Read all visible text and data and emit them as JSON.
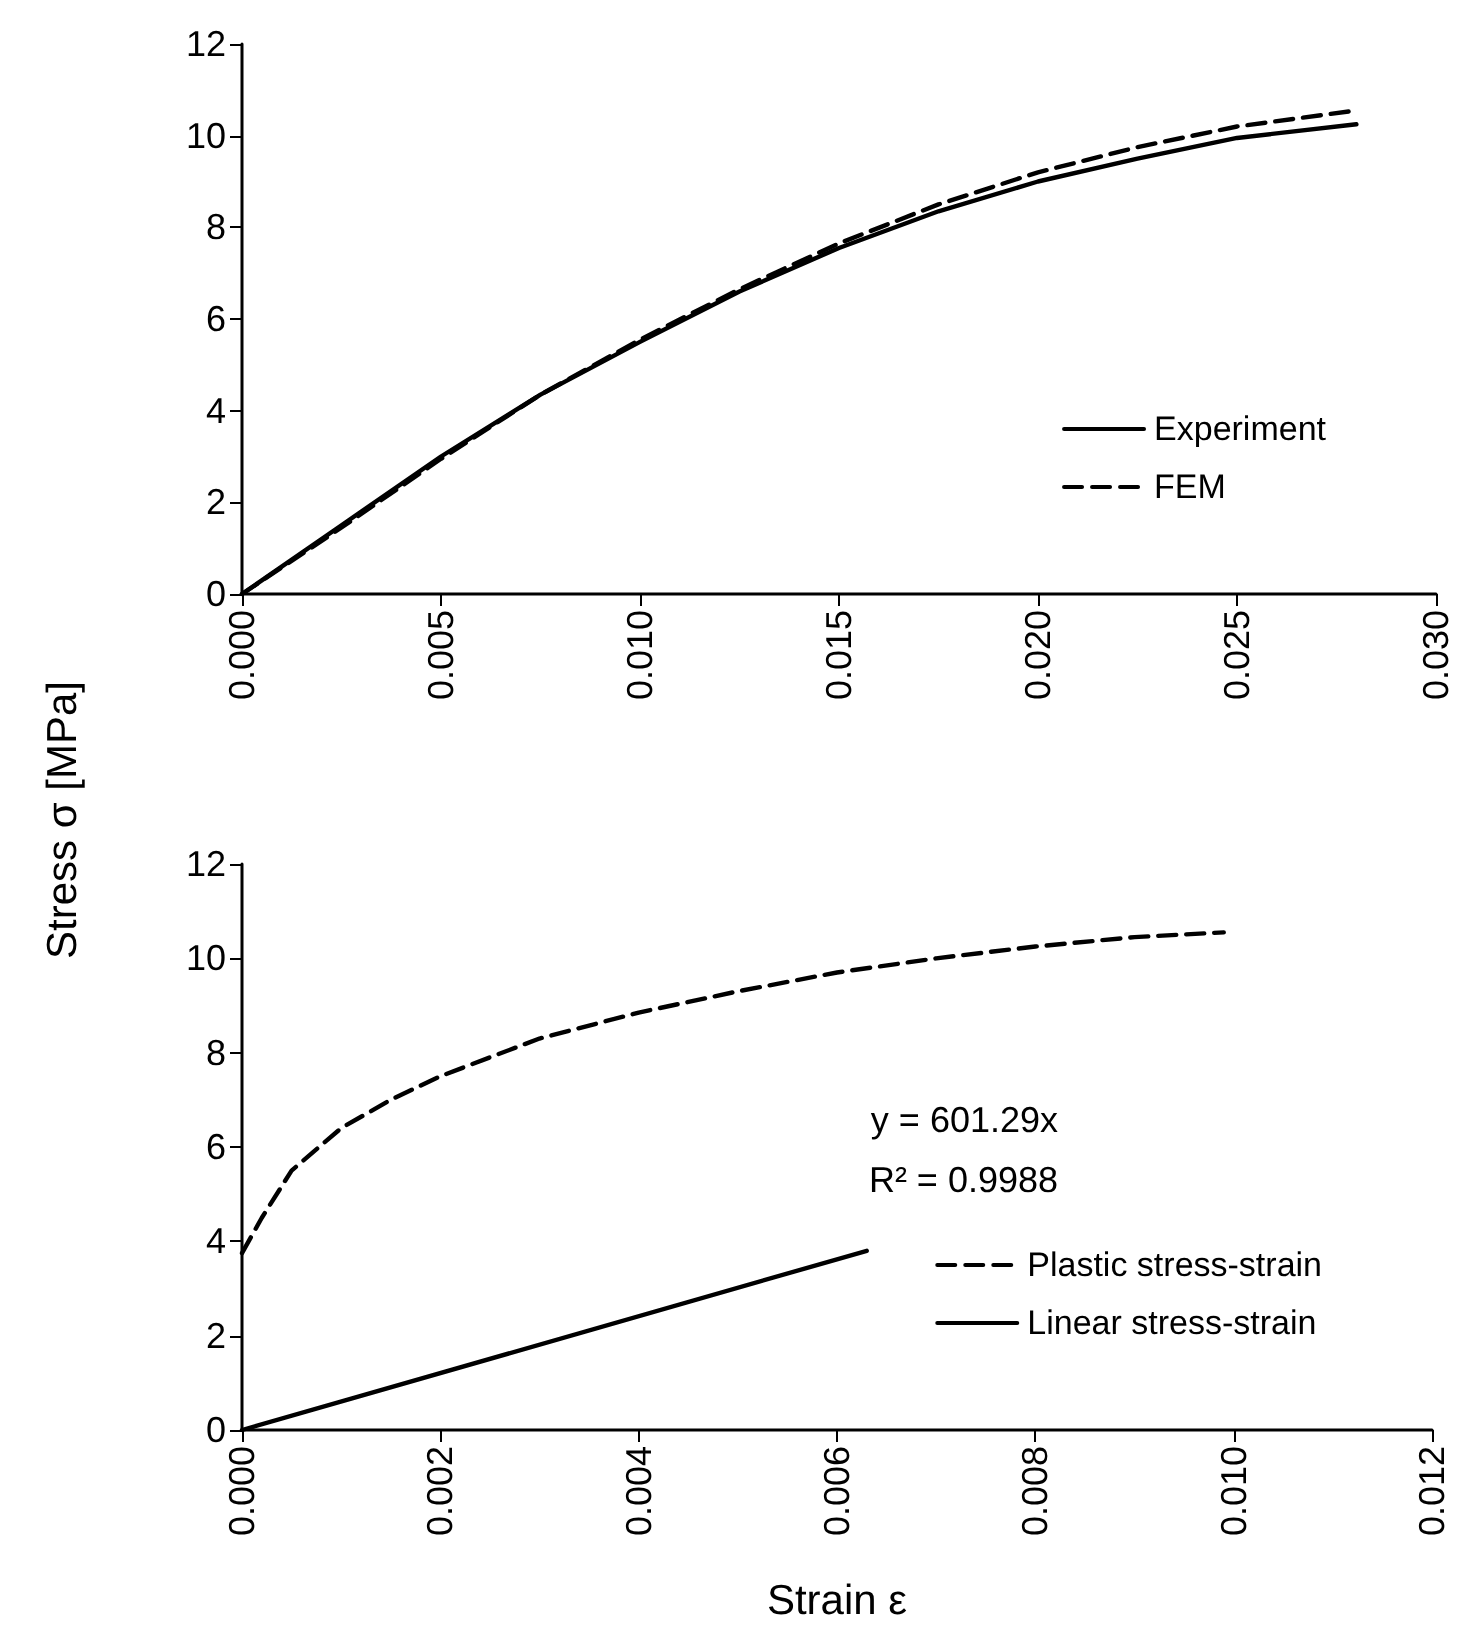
{
  "chart_data": [
    {
      "type": "line",
      "ylabel": "Stress σ [MPa]",
      "xlim": [
        0,
        0.03
      ],
      "ylim": [
        0,
        12
      ],
      "xticks": [
        {
          "value": 0,
          "label": "0.000"
        },
        {
          "value": 0.005,
          "label": "0.005"
        },
        {
          "value": 0.01,
          "label": "0.010"
        },
        {
          "value": 0.015,
          "label": "0.015"
        },
        {
          "value": 0.02,
          "label": "0.020"
        },
        {
          "value": 0.025,
          "label": "0.025"
        },
        {
          "value": 0.03,
          "label": "0.030"
        }
      ],
      "yticks": [
        0,
        2,
        4,
        6,
        8,
        10,
        12
      ],
      "grid": false,
      "legend": "bottom right",
      "marker": "none",
      "series": [
        {
          "name": "Experiment",
          "color": "#000000",
          "line_style": "solid",
          "x": [
            0,
            0.0025,
            0.005,
            0.0075,
            0.01,
            0.0125,
            0.015,
            0.0175,
            0.02,
            0.0225,
            0.025,
            0.028
          ],
          "values": [
            0,
            1.5,
            3.0,
            4.35,
            5.5,
            6.6,
            7.55,
            8.35,
            9.0,
            9.5,
            9.95,
            10.25
          ]
        },
        {
          "name": "FEM",
          "color": "#000000",
          "line_style": "dashed",
          "x": [
            0,
            0.0025,
            0.005,
            0.0075,
            0.01,
            0.0125,
            0.015,
            0.0175,
            0.02,
            0.0225,
            0.025,
            0.028
          ],
          "values": [
            0,
            1.45,
            2.95,
            4.35,
            5.55,
            6.65,
            7.65,
            8.5,
            9.2,
            9.75,
            10.2,
            10.55
          ]
        }
      ]
    },
    {
      "type": "line",
      "xlabel": "Strain ε",
      "xlim": [
        0,
        0.012
      ],
      "ylim": [
        0,
        12
      ],
      "xticks": [
        {
          "value": 0,
          "label": "0.000"
        },
        {
          "value": 0.002,
          "label": "0.002"
        },
        {
          "value": 0.004,
          "label": "0.004"
        },
        {
          "value": 0.006,
          "label": "0.006"
        },
        {
          "value": 0.008,
          "label": "0.008"
        },
        {
          "value": 0.01,
          "label": "0.010"
        },
        {
          "value": 0.012,
          "label": "0.012"
        }
      ],
      "yticks": [
        0,
        2,
        4,
        6,
        8,
        10,
        12
      ],
      "grid": false,
      "legend": "bottom right",
      "marker": "none",
      "annotations": [
        "y = 601.29x",
        "R² = 0.9988"
      ],
      "series": [
        {
          "name": "Plastic stress-strain",
          "color": "#000000",
          "line_style": "dashed",
          "x": [
            0,
            0.0002,
            0.0005,
            0.001,
            0.0015,
            0.002,
            0.003,
            0.004,
            0.005,
            0.006,
            0.007,
            0.008,
            0.009,
            0.0099
          ],
          "values": [
            3.75,
            4.5,
            5.5,
            6.4,
            7.0,
            7.5,
            8.3,
            8.85,
            9.3,
            9.7,
            10.0,
            10.25,
            10.45,
            10.55
          ]
        },
        {
          "name": "Linear stress-strain",
          "color": "#000000",
          "line_style": "solid",
          "x": [
            0,
            0.0063
          ],
          "values": [
            0,
            3.8
          ]
        }
      ]
    }
  ]
}
